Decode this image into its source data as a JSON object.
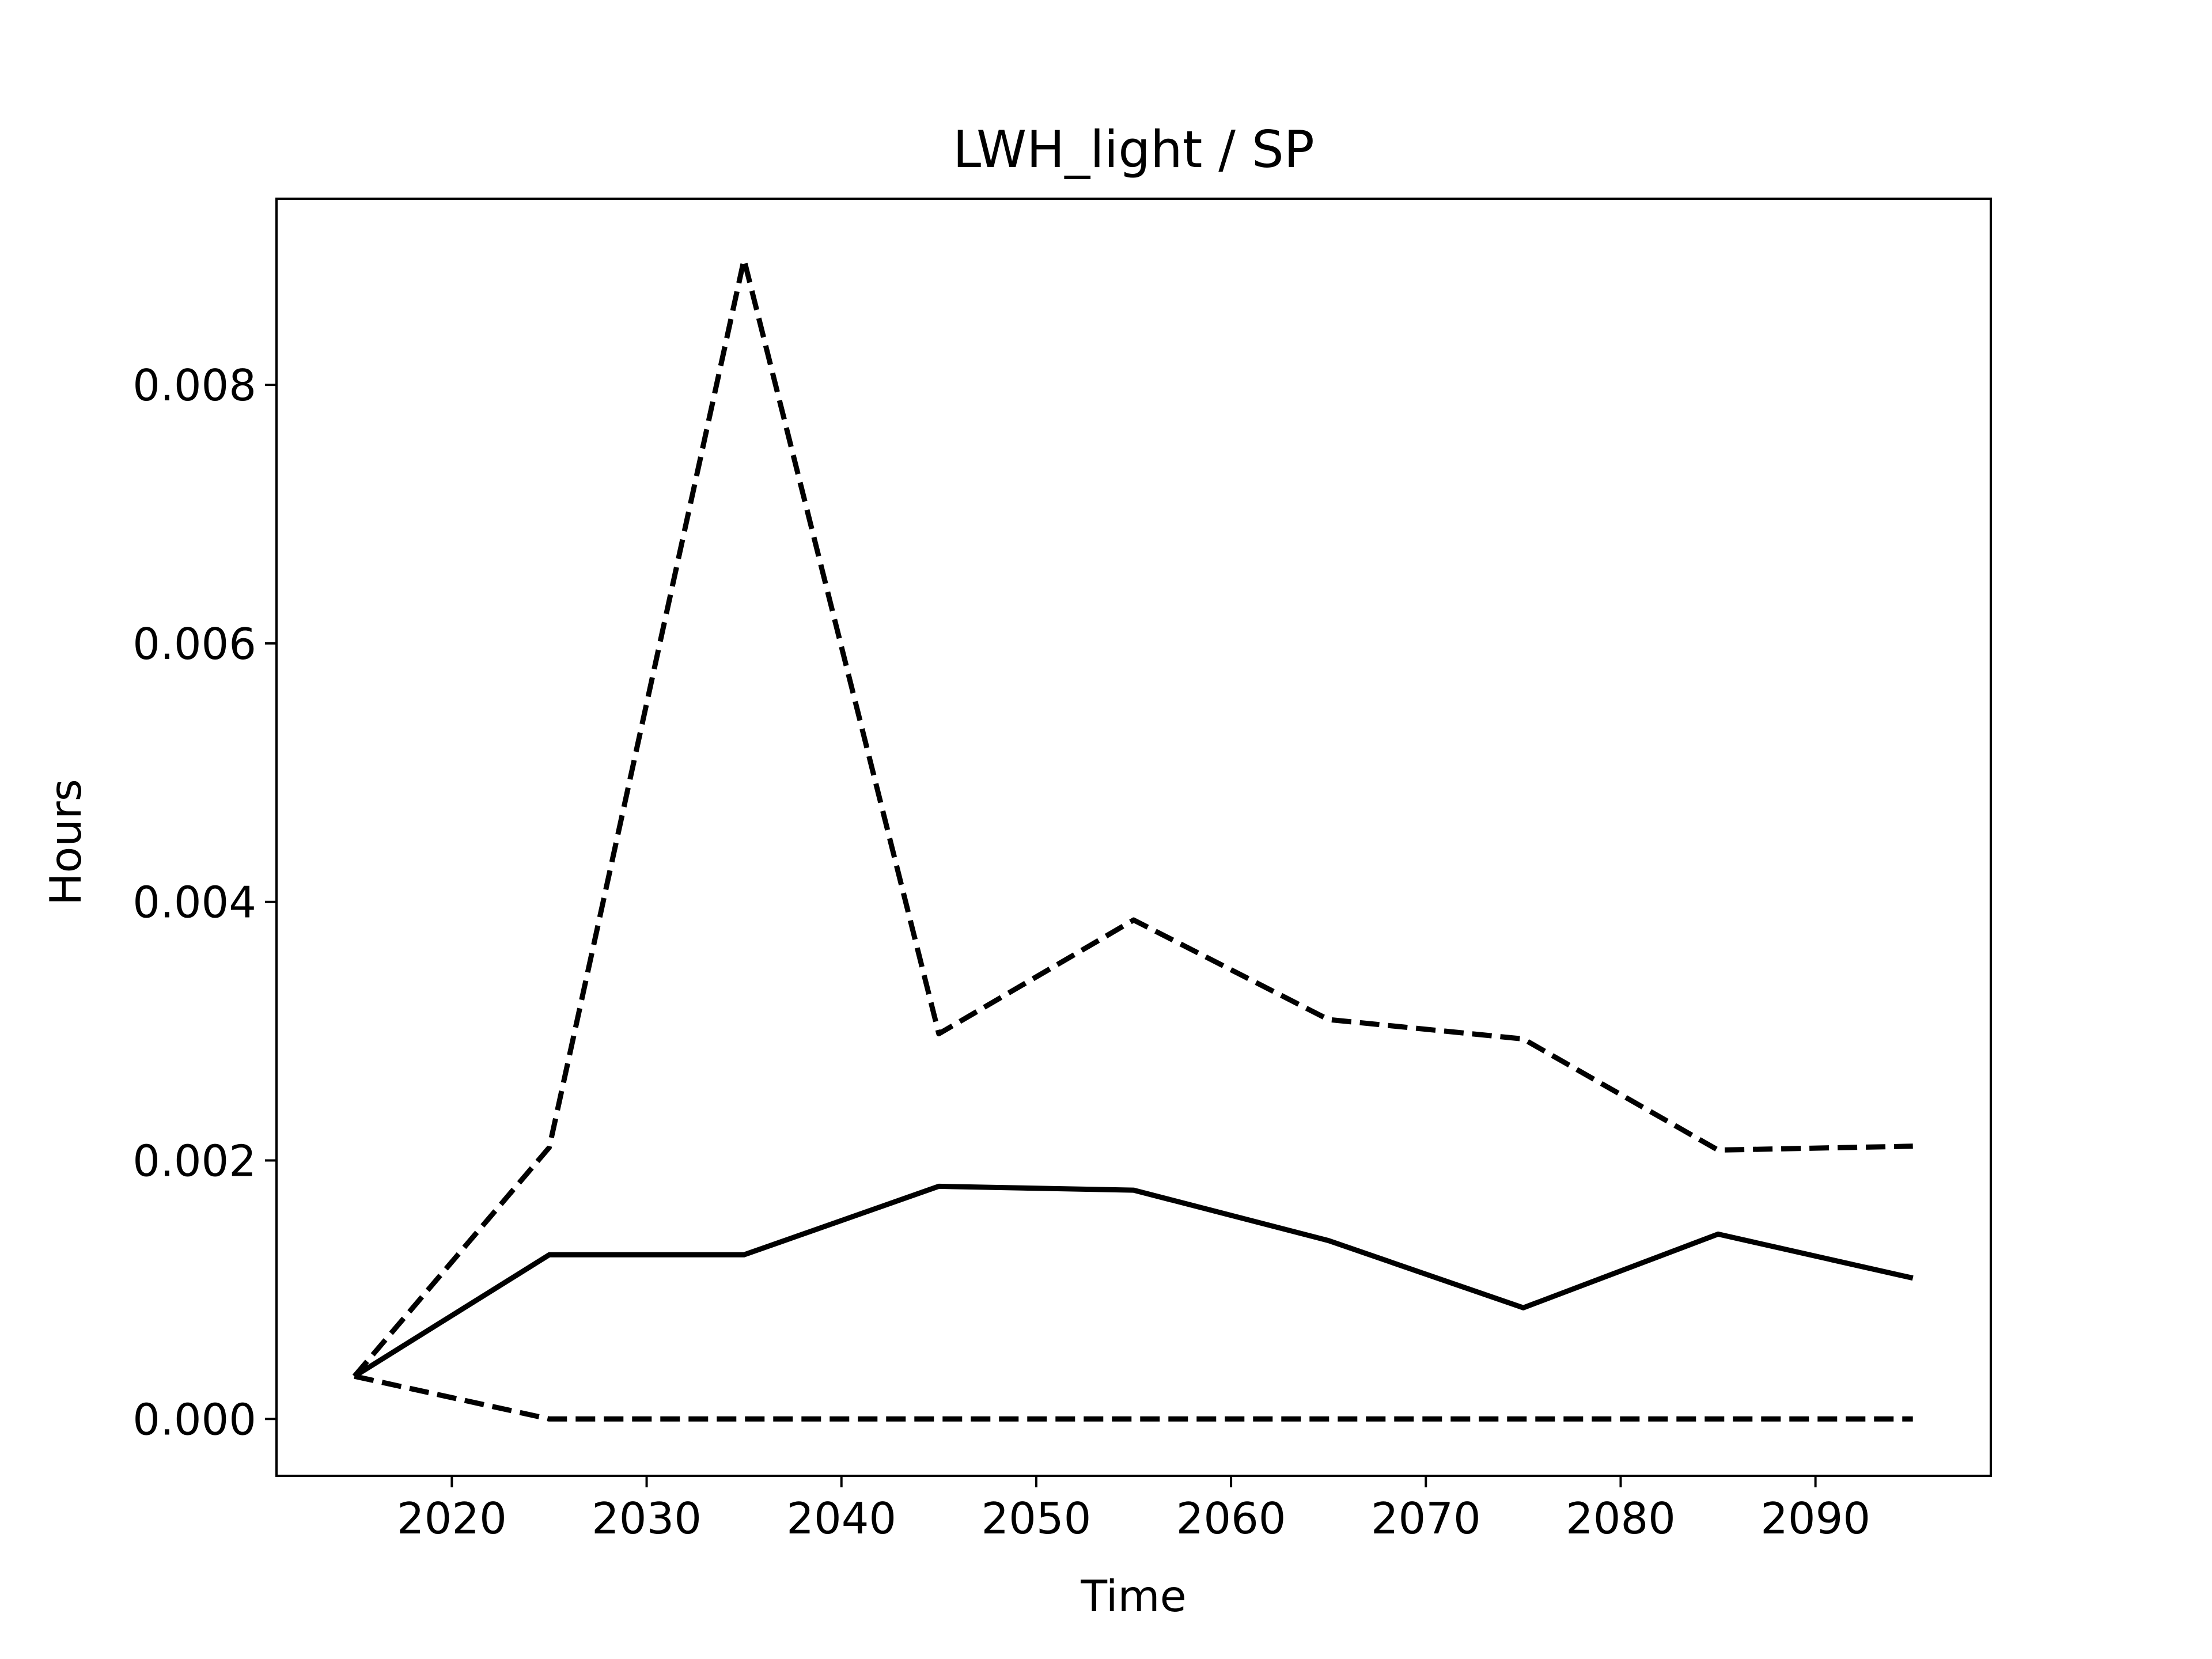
{
  "chart_data": {
    "type": "line",
    "title": "LWH_light / SP",
    "xlabel": "Time",
    "ylabel": "Hours",
    "xlim": [
      2011,
      2099
    ],
    "ylim": [
      -0.00044,
      0.00944
    ],
    "x_ticks": [
      2020,
      2030,
      2040,
      2050,
      2060,
      2070,
      2080,
      2090
    ],
    "y_ticks": [
      0.0,
      0.002,
      0.004,
      0.006,
      0.008
    ],
    "y_tick_labels": [
      "0.000",
      "0.002",
      "0.004",
      "0.006",
      "0.008"
    ],
    "grid": false,
    "x": [
      2015,
      2025,
      2035,
      2045,
      2055,
      2065,
      2075,
      2085,
      2095
    ],
    "series": [
      {
        "style": "solid",
        "color": "#000000",
        "values": [
          0.00033,
          0.00127,
          0.00127,
          0.0018,
          0.00177,
          0.00138,
          0.00086,
          0.00143,
          0.00109
        ]
      },
      {
        "style": "dashed",
        "color": "#000000",
        "values": [
          0.00033,
          0.0021,
          0.00897,
          0.00298,
          0.00386,
          0.00309,
          0.00294,
          0.00208,
          0.00211
        ]
      },
      {
        "style": "dashed",
        "color": "#000000",
        "values": [
          0.00033,
          0.0,
          0.0,
          0.0,
          0.0,
          0.0,
          0.0,
          0.0,
          0.0
        ]
      }
    ]
  }
}
